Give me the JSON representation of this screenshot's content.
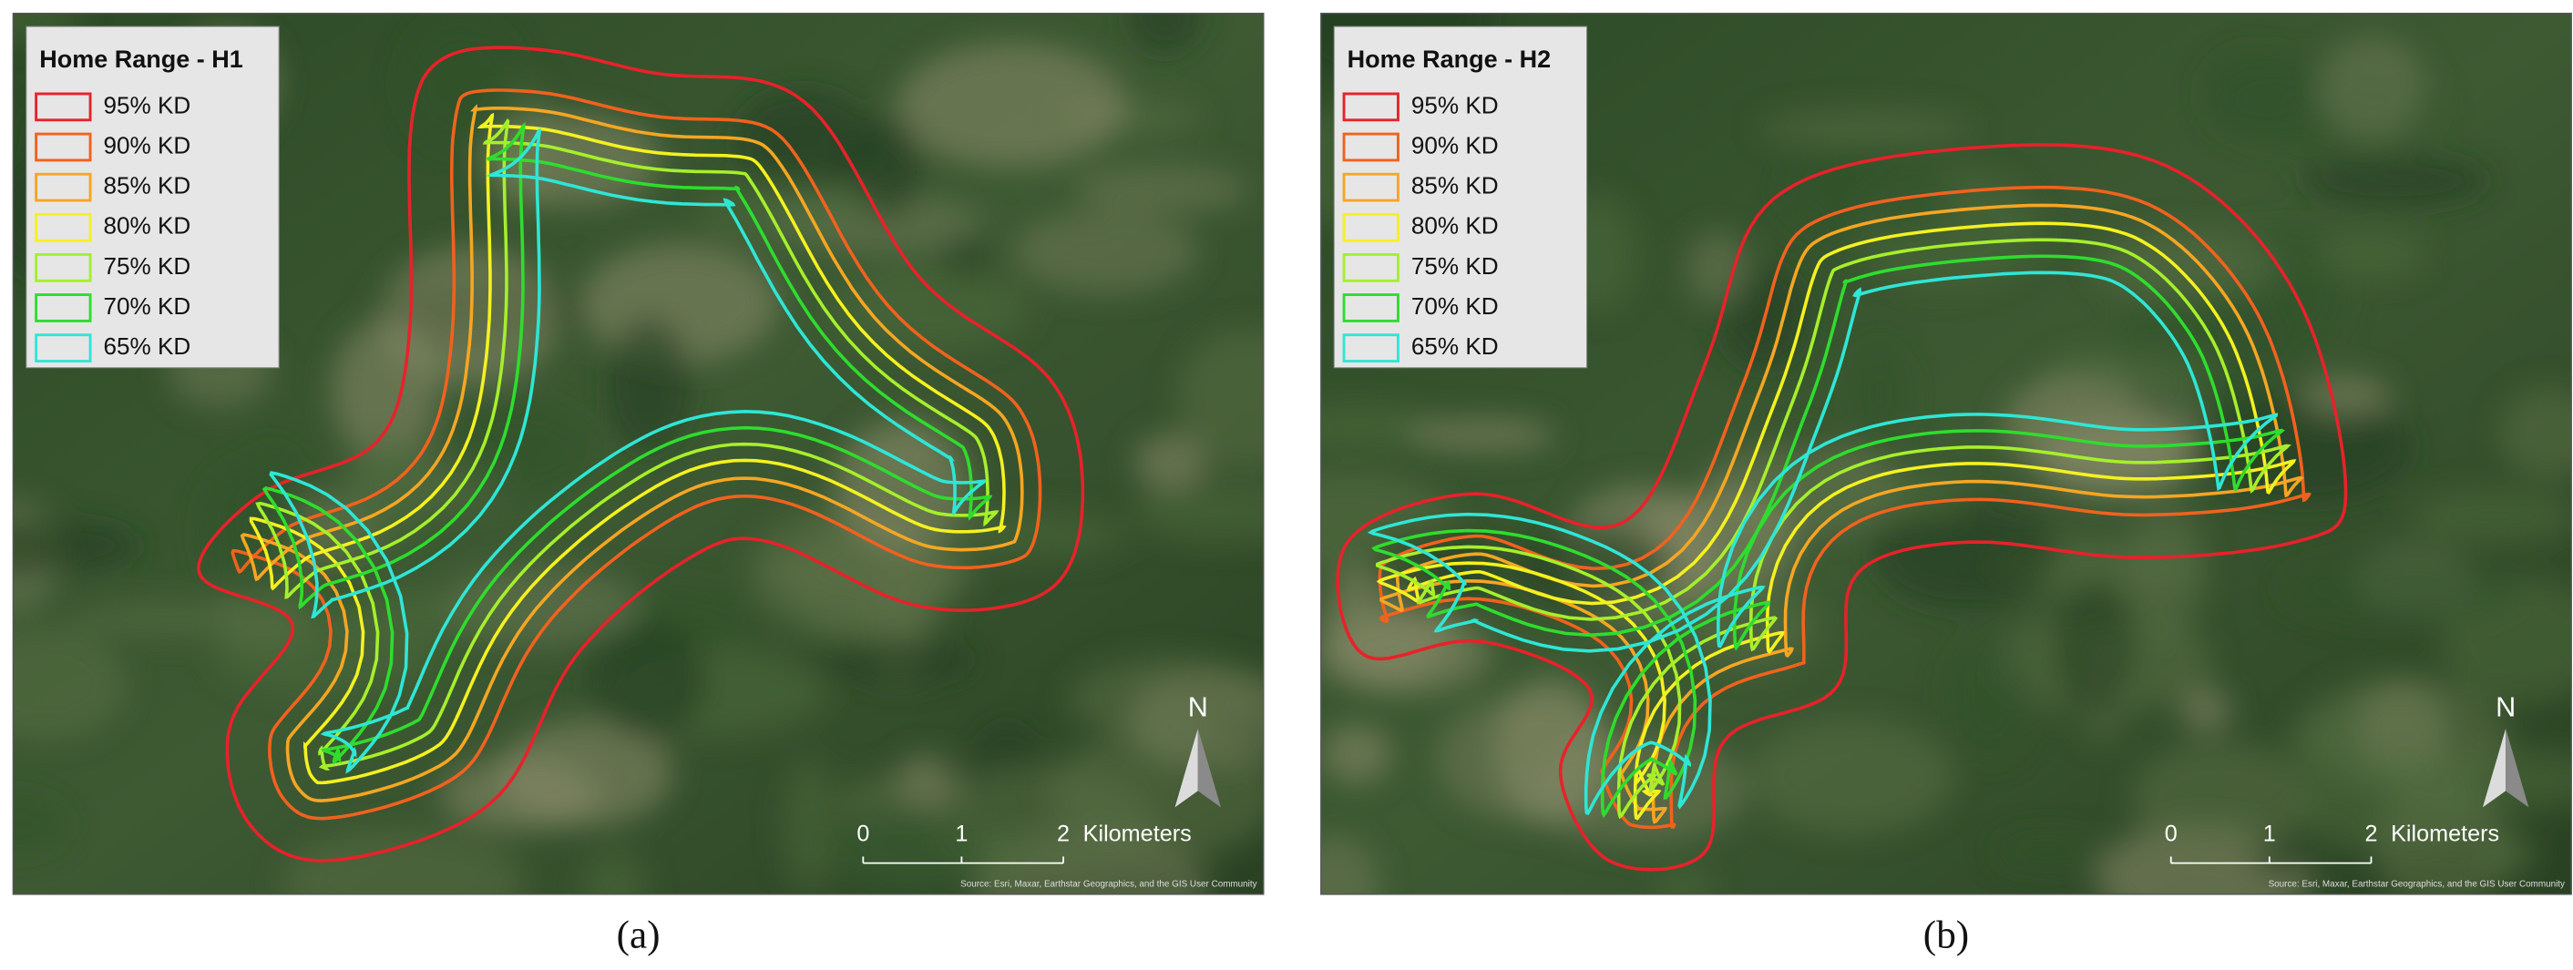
{
  "panels": [
    {
      "title": "Home Range - H1",
      "legend": [
        {
          "label": "95% KD",
          "color": "#e8222a"
        },
        {
          "label": "90% KD",
          "color": "#f0621e"
        },
        {
          "label": "85% KD",
          "color": "#f5a623"
        },
        {
          "label": "80% KD",
          "color": "#f4f121"
        },
        {
          "label": "75% KD",
          "color": "#a6ef2c"
        },
        {
          "label": "70% KD",
          "color": "#2fdc2f"
        },
        {
          "label": "65% KD",
          "color": "#2fe6d5"
        }
      ],
      "north": "N",
      "scale_labels": [
        "0",
        "1",
        "2"
      ],
      "scale_unit": "Kilometers",
      "attribution": "Source: Esri, Maxar, Earthstar Geographics, and the GIS User Community",
      "caption": "(a)"
    },
    {
      "title": "Home Range - H2",
      "legend": [
        {
          "label": "95% KD",
          "color": "#e8222a"
        },
        {
          "label": "90% KD",
          "color": "#f0621e"
        },
        {
          "label": "85% KD",
          "color": "#f5a623"
        },
        {
          "label": "80% KD",
          "color": "#f4f121"
        },
        {
          "label": "75% KD",
          "color": "#a6ef2c"
        },
        {
          "label": "70% KD",
          "color": "#2fdc2f"
        },
        {
          "label": "65% KD",
          "color": "#2fe6d5"
        }
      ],
      "north": "N",
      "scale_labels": [
        "0",
        "1",
        "2"
      ],
      "scale_unit": "Kilometers",
      "attribution": "Source: Esri, Maxar, Earthstar Geographics, and the GIS User Community",
      "caption": "(b)"
    }
  ]
}
